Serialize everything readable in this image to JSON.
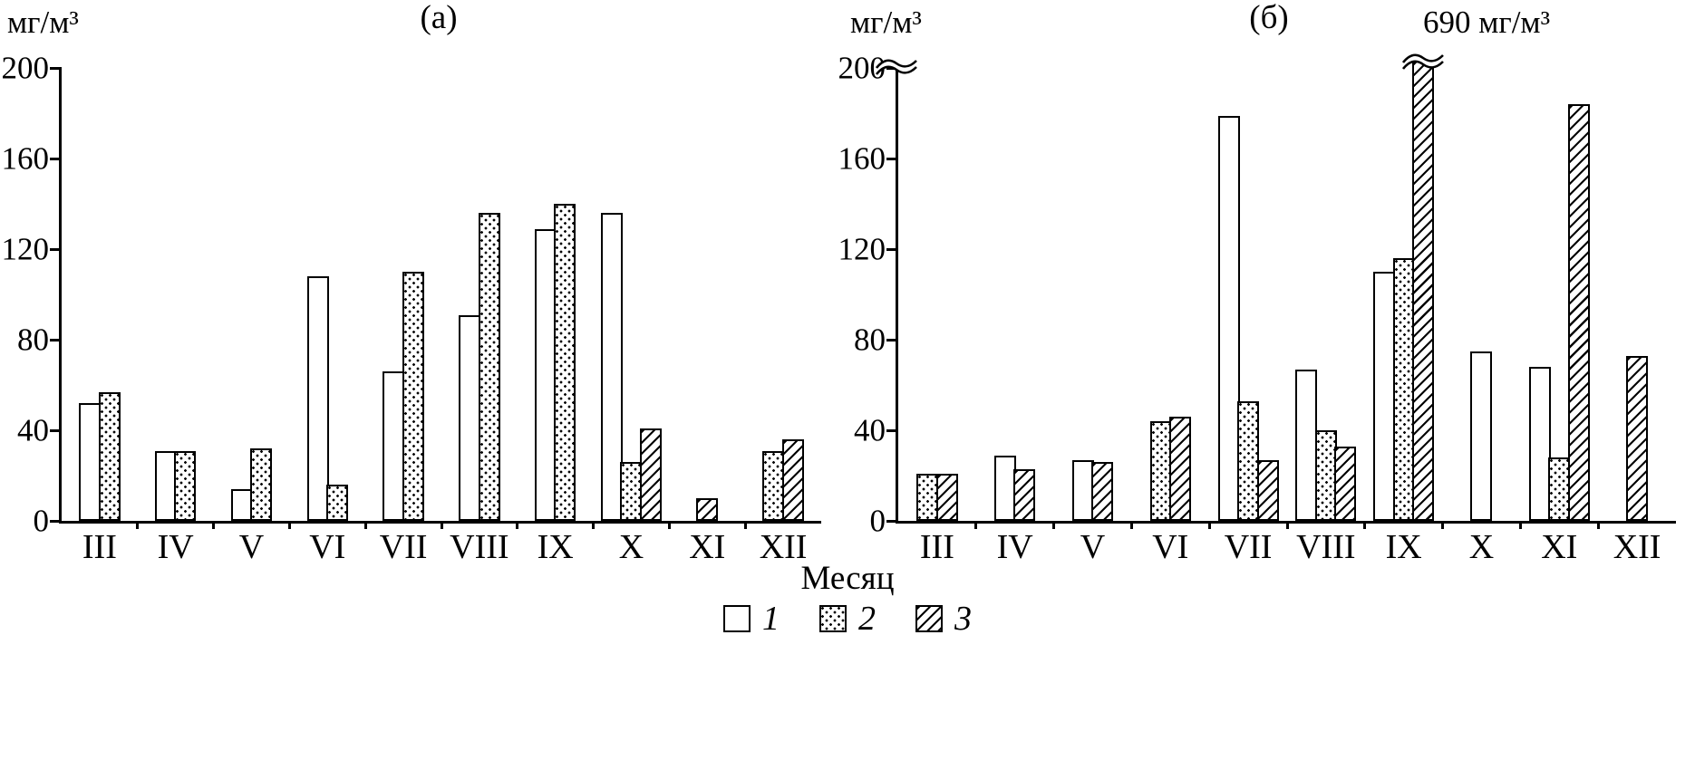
{
  "figure": {
    "background": "#ffffff",
    "ink_color": "#000000"
  },
  "legend": {
    "position": "bottom-center",
    "items": [
      {
        "label": "1",
        "pattern": "plain-white"
      },
      {
        "label": "2",
        "pattern": "dots"
      },
      {
        "label": "3",
        "pattern": "diagonal-hatch"
      }
    ]
  },
  "chart_data": [
    {
      "type": "bar",
      "panel": "(а)",
      "ylabel": "мг/м³",
      "xlabel": "Месяц",
      "ylim": [
        0,
        200
      ],
      "yticks": [
        0,
        40,
        80,
        120,
        160,
        200
      ],
      "grid": false,
      "categories": [
        "III",
        "IV",
        "V",
        "VI",
        "VII",
        "VIII",
        "IX",
        "X",
        "XI",
        "XII"
      ],
      "series": [
        {
          "name": "1",
          "pattern": "plain-white",
          "values": [
            52,
            31,
            14,
            108,
            66,
            91,
            129,
            136,
            null,
            null
          ]
        },
        {
          "name": "2",
          "pattern": "dots",
          "values": [
            57,
            31,
            32,
            16,
            110,
            136,
            140,
            26,
            null,
            31
          ]
        },
        {
          "name": "3",
          "pattern": "diagonal-hatch",
          "values": [
            null,
            null,
            null,
            null,
            null,
            null,
            null,
            41,
            10,
            36
          ]
        }
      ]
    },
    {
      "type": "bar",
      "panel": "(б)",
      "ylabel": "мг/м³",
      "xlabel": "Месяц",
      "annotation": "690 мг/м³",
      "ylim": [
        0,
        200
      ],
      "yticks": [
        0,
        40,
        80,
        120,
        160,
        200
      ],
      "grid": false,
      "axis_break_at_top": true,
      "offscale_note": "series 3 in month IX reaches 690, drawn broken at 200",
      "categories": [
        "III",
        "IV",
        "V",
        "VI",
        "VII",
        "VIII",
        "IX",
        "X",
        "XI",
        "XII"
      ],
      "series": [
        {
          "name": "1",
          "pattern": "plain-white",
          "values": [
            null,
            29,
            27,
            null,
            179,
            67,
            110,
            75,
            68,
            null
          ]
        },
        {
          "name": "2",
          "pattern": "dots",
          "values": [
            21,
            null,
            null,
            44,
            53,
            40,
            116,
            null,
            28,
            null
          ]
        },
        {
          "name": "3",
          "pattern": "diagonal-hatch",
          "values": [
            21,
            23,
            26,
            46,
            27,
            33,
            690,
            null,
            184,
            73
          ]
        }
      ]
    }
  ]
}
